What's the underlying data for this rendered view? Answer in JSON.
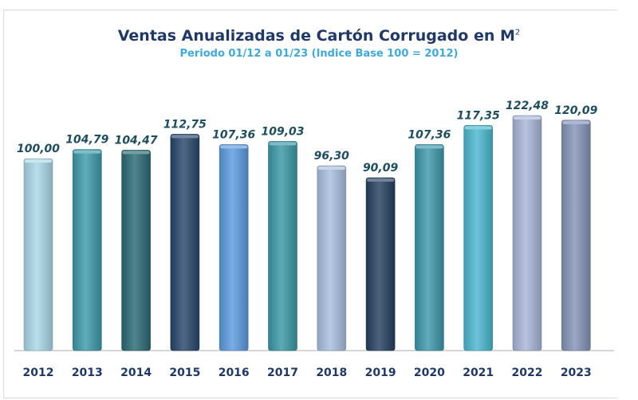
{
  "chart_data": {
    "type": "bar",
    "title": "Ventas Anualizadas de Cartón Corrugado en M",
    "title_superscript": "2",
    "subtitle": "Periodo  01/12 a 01/23 (Indice Base 100 = 2012)",
    "categories": [
      "2012",
      "2013",
      "2014",
      "2015",
      "2016",
      "2017",
      "2018",
      "2019",
      "2020",
      "2021",
      "2022",
      "2023"
    ],
    "values": [
      100.0,
      104.79,
      104.47,
      112.75,
      107.36,
      109.03,
      96.3,
      90.09,
      107.36,
      117.35,
      122.48,
      120.09
    ],
    "value_labels": [
      "100,00",
      "104,79",
      "104,47",
      "112,75",
      "107,36",
      "109,03",
      "96,30",
      "90,09",
      "107,36",
      "117,35",
      "122,48",
      "120,09"
    ],
    "bar_colors": [
      "#a9d8e8",
      "#3d9aab",
      "#2b6a74",
      "#27476b",
      "#5d9be0",
      "#3b98a6",
      "#a9bedf",
      "#26405f",
      "#3d98ad",
      "#4bb8d0",
      "#a8b6d8",
      "#8494b8"
    ],
    "xlabel": "",
    "ylabel": "",
    "ylim": [
      0,
      122.48
    ],
    "grid": false,
    "legend": "none"
  }
}
